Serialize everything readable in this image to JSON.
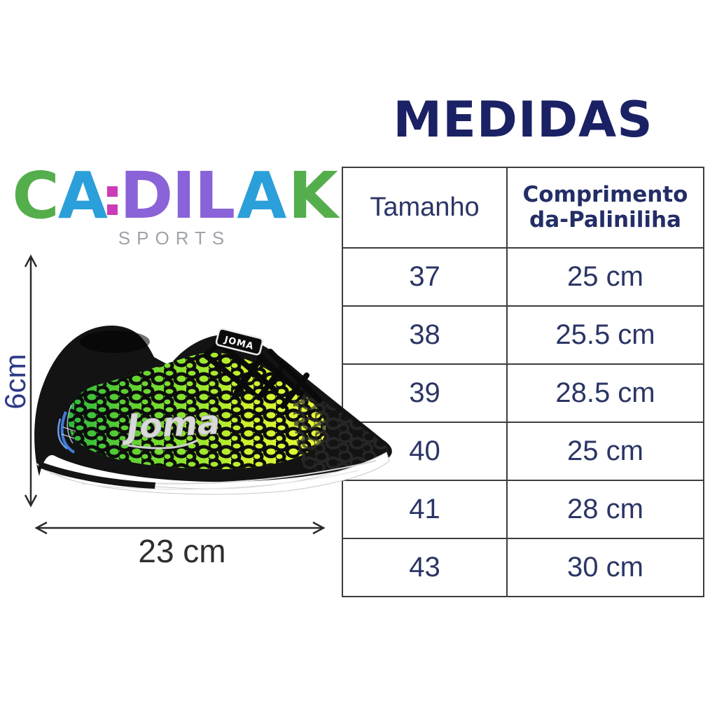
{
  "logo": {
    "brand_name": "CADILAK",
    "subtitle": "SPORTS",
    "subtitle_color": "#9fa3a9",
    "accent_color": "#cb3cb6",
    "letters": [
      {
        "ch": "C",
        "color": "#54ae4c"
      },
      {
        "ch": "A",
        "color": "#2b9fd9"
      },
      {
        "square": "colon",
        "color": "#cb3cb6"
      },
      {
        "ch": "D",
        "color": "#8a63d8"
      },
      {
        "ch": "I",
        "color": "#8a63d8"
      },
      {
        "ch": "L",
        "color": "#8a63d8"
      },
      {
        "square": "dot",
        "color": "#cb3cb6"
      },
      {
        "ch": "A",
        "color": "#2b9fd9"
      },
      {
        "square": "tittle",
        "color": "#2b9fd9"
      },
      {
        "ch": "K",
        "color": "#54ae4c"
      }
    ]
  },
  "title": {
    "text": "MEDIDAS",
    "color": "#1a2164"
  },
  "size_table": {
    "border_color": "#3d3d3d",
    "text_color": "#2b3565",
    "columns": [
      "Tamanho",
      "Comprimento da-Paliniliha"
    ],
    "header": {
      "col1": "Tamanho",
      "col2_line1": "Comprimento",
      "col2_line2": "da-Paliniliha"
    },
    "rows": [
      {
        "tamanho": "37",
        "comprimento": "25 cm"
      },
      {
        "tamanho": "38",
        "comprimento": "25.5 cm"
      },
      {
        "tamanho": "39",
        "comprimento": "28.5 cm"
      },
      {
        "tamanho": "40",
        "comprimento": "25 cm"
      },
      {
        "tamanho": "41",
        "comprimento": "28 cm"
      },
      {
        "tamanho": "43",
        "comprimento": "30 cm"
      }
    ]
  },
  "dimensions": {
    "height_label": "6cm",
    "height_label_color": "#2e3a85",
    "width_label": "23 cm",
    "width_label_color": "#2e2e2e",
    "arrow_color": "#2a2a2a"
  },
  "shoe": {
    "description": "Joma futsal shoe: black upper, green-to-yellow crocodile scale pattern, silver Joma logo, white sole, blue heel accents",
    "side_logo": "Joma",
    "tongue_label": "JOMA",
    "colors": {
      "upper": "#131313",
      "pattern_green": "#2eb93c",
      "pattern_yellow": "#ecfa38",
      "sole": "#ffffff",
      "accent_blue": "#3e7cd8",
      "logo_silver": "#d9d9d9"
    }
  },
  "chart_data": {
    "type": "table",
    "title": "MEDIDAS",
    "columns": [
      "Tamanho",
      "Comprimento da-Paliniliha"
    ],
    "rows": [
      [
        37,
        "25 cm"
      ],
      [
        38,
        "25.5 cm"
      ],
      [
        39,
        "28.5 cm"
      ],
      [
        40,
        "25 cm"
      ],
      [
        41,
        "28 cm"
      ],
      [
        43,
        "30 cm"
      ]
    ]
  }
}
